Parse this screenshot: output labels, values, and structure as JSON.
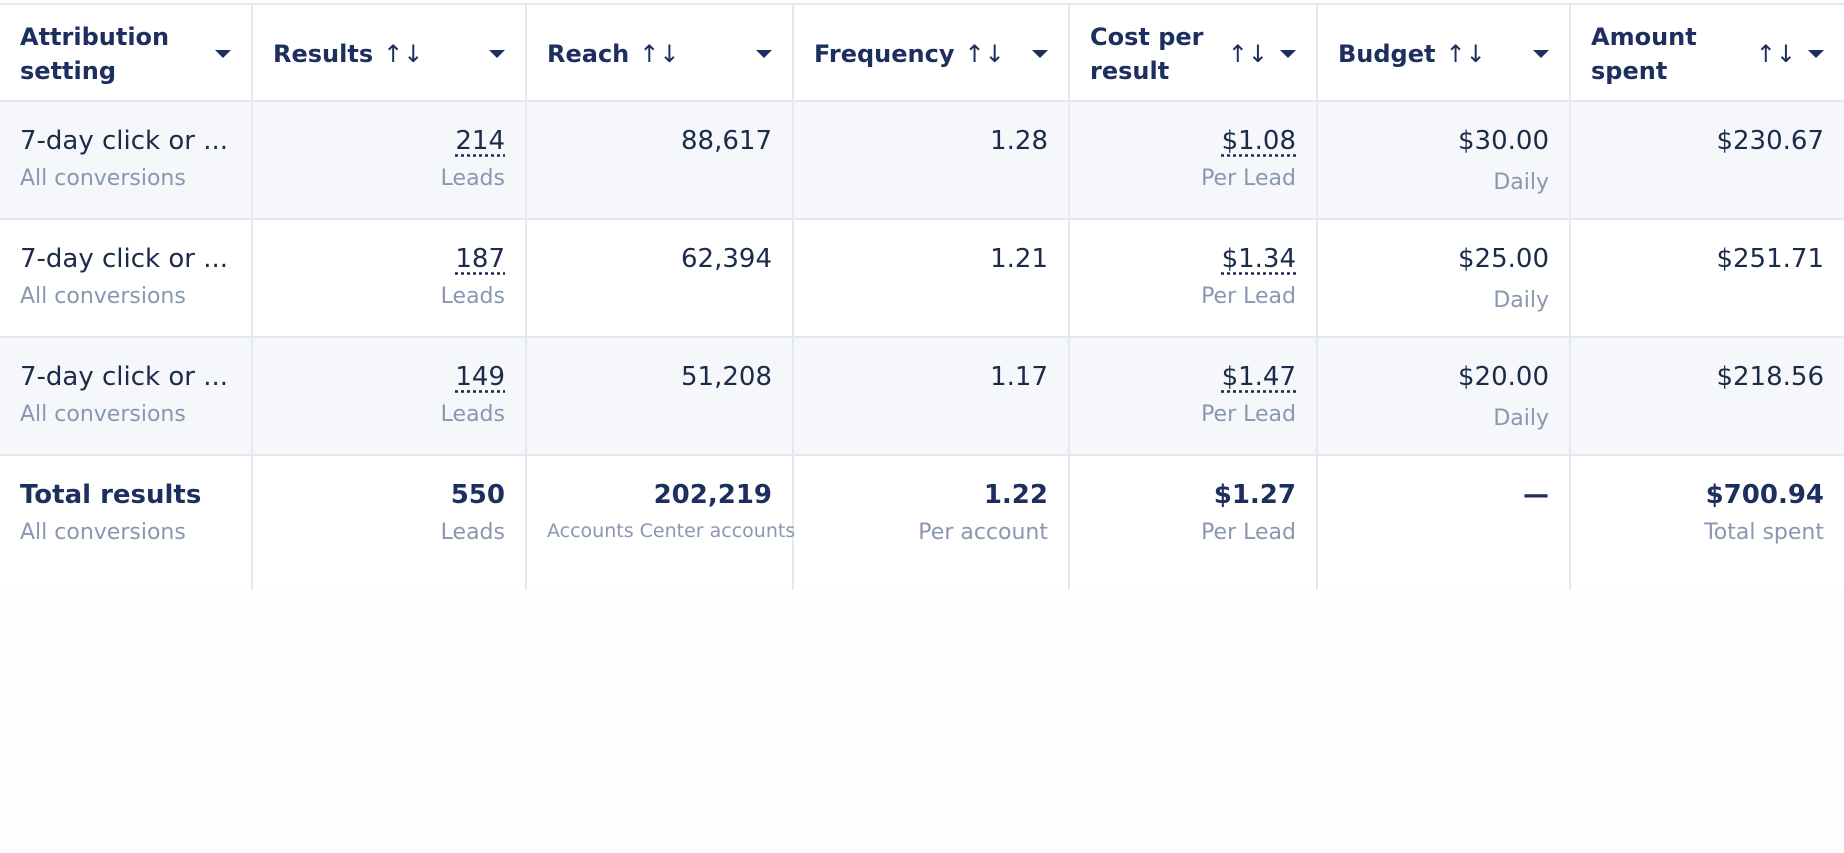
{
  "table": {
    "columns": [
      {
        "label": "Attribution setting",
        "sortable": false
      },
      {
        "label": "Results",
        "sortable": true
      },
      {
        "label": "Reach",
        "sortable": true
      },
      {
        "label": "Frequency",
        "sortable": true
      },
      {
        "label": "Cost per result",
        "sortable": true
      },
      {
        "label": "Budget",
        "sortable": true
      },
      {
        "label": "Amount spent",
        "sortable": true
      }
    ],
    "rows": [
      {
        "cells": [
          {
            "main": "7-day click or ...",
            "sub": "All conversions"
          },
          {
            "main": "214",
            "sub": "Leads"
          },
          {
            "main": "88,617"
          },
          {
            "main": "1.28"
          },
          {
            "main": "$1.08",
            "sub": "Per Lead"
          },
          {
            "main": "$30.00",
            "sub": "Daily"
          },
          {
            "main": "$230.67"
          }
        ]
      },
      {
        "cells": [
          {
            "main": "7-day click or ...",
            "sub": "All conversions"
          },
          {
            "main": "187",
            "sub": "Leads"
          },
          {
            "main": "62,394"
          },
          {
            "main": "1.21"
          },
          {
            "main": "$1.34",
            "sub": "Per Lead"
          },
          {
            "main": "$25.00",
            "sub": "Daily"
          },
          {
            "main": "$251.71"
          }
        ]
      },
      {
        "cells": [
          {
            "main": "7-day click or ...",
            "sub": "All conversions"
          },
          {
            "main": "149",
            "sub": "Leads"
          },
          {
            "main": "51,208"
          },
          {
            "main": "1.17"
          },
          {
            "main": "$1.47",
            "sub": "Per Lead"
          },
          {
            "main": "$20.00",
            "sub": "Daily"
          },
          {
            "main": "$218.56"
          }
        ]
      }
    ],
    "total": {
      "cells": [
        {
          "main": "Total results",
          "sub": "All conversions"
        },
        {
          "main": "550",
          "sub": "Leads"
        },
        {
          "main": "202,219",
          "sub": "Accounts Center accounts"
        },
        {
          "main": "1.22",
          "sub": "Per account"
        },
        {
          "main": "$1.27",
          "sub": "Per Lead"
        },
        {
          "main": "—"
        },
        {
          "main": "$700.94",
          "sub": "Total spent"
        }
      ]
    }
  }
}
